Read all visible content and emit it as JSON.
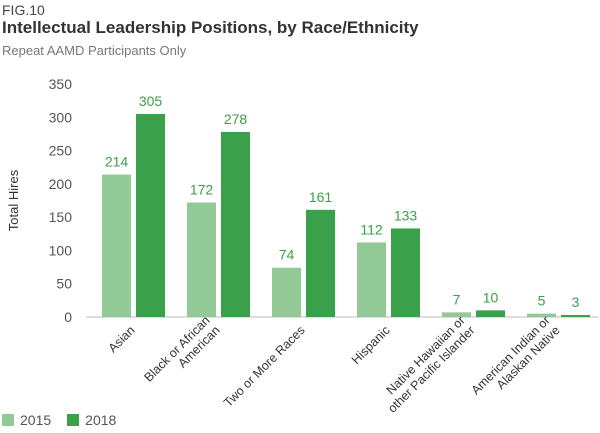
{
  "figure": {
    "label": "FIG.10",
    "title": "Intellectual Leadership Positions, by Race/Ethnicity",
    "subtitle": "Repeat AAMD Participants Only"
  },
  "colors": {
    "series_2015": "#93c996",
    "series_2018": "#3aa04a",
    "value_label": "#3aa04a"
  },
  "chart_data": {
    "type": "bar",
    "title": "Intellectual Leadership Positions, by Race/Ethnicity",
    "subtitle": "Repeat AAMD Participants Only",
    "xlabel": "",
    "ylabel": "Total Hires",
    "ylim": [
      0,
      350
    ],
    "yticks": [
      0,
      50,
      100,
      150,
      200,
      250,
      300,
      350
    ],
    "grid": false,
    "legend_position": "bottom-left",
    "categories": [
      [
        "Asian"
      ],
      [
        "Black or African",
        "American"
      ],
      [
        "Two or More Races"
      ],
      [
        "Hispanic"
      ],
      [
        "Native Hawaiian or",
        "other Pacific Islander"
      ],
      [
        "American Indian or",
        "Alaskan Native"
      ]
    ],
    "series": [
      {
        "name": "2015",
        "values": [
          214,
          172,
          74,
          112,
          7,
          5
        ]
      },
      {
        "name": "2018",
        "values": [
          305,
          278,
          161,
          133,
          10,
          3
        ]
      }
    ]
  }
}
